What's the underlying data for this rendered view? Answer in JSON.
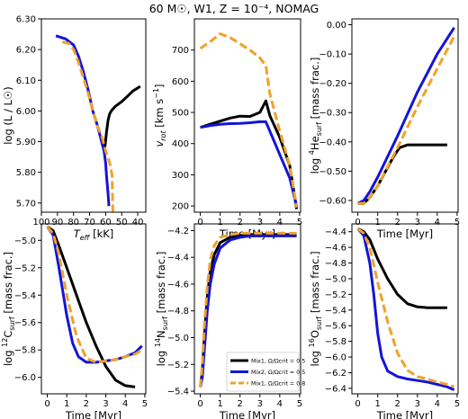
{
  "figure_title": "60 M☉, W1, Z = 10⁻⁴, NOMAG",
  "colors": {
    "black": "#000000",
    "blue": "#1414d8",
    "orange": "#f0a12a"
  },
  "legend": {
    "placement": "lower-right of panel 5",
    "entries": [
      {
        "label": "Mix1, Ω/Ωcrit = 0.5",
        "color": "#000000",
        "style": "solid"
      },
      {
        "label": "Mix2, Ω/Ωcrit = 0.5",
        "color": "#1414d8",
        "style": "solid"
      },
      {
        "label": "Mix1, Ω/Ωcrit = 0.8",
        "color": "#f0a12a",
        "style": "dashed"
      }
    ]
  },
  "chart_data": [
    {
      "type": "line",
      "xlabel": "Teff [kK]",
      "ylabel": "log (L / L☉)",
      "xlim": [
        100,
        35
      ],
      "ylim": [
        5.67,
        6.3
      ],
      "xticks": [
        100,
        90,
        80,
        70,
        60,
        50,
        40
      ],
      "yticks": [
        5.7,
        5.8,
        5.9,
        6.0,
        6.1,
        6.2,
        6.3
      ],
      "series": [
        {
          "color": "black",
          "x": [
            60.5,
            59.5,
            58.5,
            57.5,
            56.5,
            54,
            50,
            46,
            43,
            40,
            38.5
          ],
          "y": [
            5.88,
            5.93,
            5.97,
            5.99,
            6.0,
            6.015,
            6.03,
            6.05,
            6.065,
            6.075,
            6.08
          ]
        },
        {
          "color": "blue",
          "x": [
            91,
            85,
            80,
            77,
            74,
            71,
            68,
            65,
            63,
            61,
            60,
            59.5,
            58.5,
            58
          ],
          "y": [
            6.245,
            6.235,
            6.215,
            6.18,
            6.13,
            6.07,
            6.0,
            5.95,
            5.91,
            5.87,
            5.83,
            5.79,
            5.73,
            5.69
          ]
        },
        {
          "color": "orange",
          "x": [
            87,
            83,
            80,
            77,
            74,
            71,
            68,
            65,
            62,
            60,
            58,
            57,
            56,
            55.8,
            55.5
          ],
          "y": [
            6.225,
            6.22,
            6.2,
            6.16,
            6.11,
            6.06,
            6.0,
            5.95,
            5.91,
            5.87,
            5.84,
            5.82,
            5.79,
            5.74,
            5.67
          ]
        }
      ]
    },
    {
      "type": "line",
      "xlabel": "Time [Myr]",
      "ylabel": "vrot [km s⁻¹]",
      "xlim": [
        -0.3,
        5.05
      ],
      "ylim": [
        180,
        800
      ],
      "xticks": [
        0,
        1,
        2,
        3,
        4,
        5
      ],
      "yticks": [
        200,
        300,
        400,
        500,
        600,
        700
      ],
      "series": [
        {
          "color": "black",
          "x": [
            0,
            0.5,
            1,
            1.5,
            2,
            2.5,
            3,
            3.3,
            3.5,
            4,
            4.5,
            4.85
          ],
          "y": [
            452,
            462,
            472,
            482,
            488,
            487,
            500,
            537,
            490,
            420,
            330,
            190
          ]
        },
        {
          "color": "blue",
          "x": [
            0,
            0.5,
            1,
            1.5,
            2,
            2.5,
            3,
            3.3,
            3.5,
            4,
            4.5,
            4.85
          ],
          "y": [
            452,
            458,
            462,
            464,
            465,
            467,
            470,
            470,
            440,
            365,
            290,
            200
          ]
        },
        {
          "color": "orange",
          "x": [
            0,
            0.5,
            1,
            1.5,
            2,
            2.5,
            3,
            3.3,
            3.5,
            4,
            4.5,
            4.85
          ],
          "y": [
            705,
            727,
            752,
            740,
            720,
            700,
            675,
            650,
            560,
            440,
            330,
            195
          ]
        }
      ]
    },
    {
      "type": "line",
      "xlabel": "Time [Myr]",
      "ylabel": "log ⁴He surf [mass frac.]",
      "xlim": [
        -0.3,
        5.05
      ],
      "ylim": [
        -0.64,
        0.02
      ],
      "xticks": [
        0,
        1,
        2,
        3,
        4,
        5
      ],
      "yticks": [
        -0.6,
        -0.5,
        -0.4,
        -0.3,
        -0.2,
        -0.1,
        0.0
      ],
      "series": [
        {
          "color": "black",
          "x": [
            0,
            0.3,
            0.6,
            1,
            1.4,
            1.8,
            2.1,
            2.5,
            3,
            3.5,
            4,
            4.5
          ],
          "y": [
            -0.61,
            -0.61,
            -0.59,
            -0.55,
            -0.5,
            -0.45,
            -0.42,
            -0.41,
            -0.41,
            -0.41,
            -0.41,
            -0.41
          ]
        },
        {
          "color": "blue",
          "x": [
            0,
            0.3,
            0.6,
            1,
            2,
            3,
            4,
            4.85
          ],
          "y": [
            -0.61,
            -0.6,
            -0.57,
            -0.52,
            -0.38,
            -0.23,
            -0.1,
            -0.01
          ]
        },
        {
          "color": "orange",
          "x": [
            0,
            0.3,
            0.6,
            1,
            2,
            3,
            4,
            4.85
          ],
          "y": [
            -0.61,
            -0.61,
            -0.59,
            -0.55,
            -0.42,
            -0.28,
            -0.15,
            -0.04
          ]
        }
      ]
    },
    {
      "type": "line",
      "xlabel": "Time [Myr]",
      "ylabel": "log ¹²C surf [mass frac.]",
      "xlim": [
        -0.3,
        5.05
      ],
      "ylim": [
        -6.12,
        -4.88
      ],
      "xticks": [
        0,
        1,
        2,
        3,
        4,
        5
      ],
      "yticks": [
        -5.0,
        -5.2,
        -5.4,
        -5.6,
        -5.8,
        -6.0
      ],
      "series": [
        {
          "color": "black",
          "x": [
            0,
            0.3,
            0.6,
            1,
            1.5,
            2,
            2.5,
            3,
            3.5,
            4,
            4.5
          ],
          "y": [
            -4.9,
            -4.93,
            -5.04,
            -5.2,
            -5.4,
            -5.6,
            -5.77,
            -5.92,
            -6.02,
            -6.06,
            -6.07
          ]
        },
        {
          "color": "blue",
          "x": [
            0,
            0.3,
            0.6,
            1,
            1.3,
            1.6,
            2,
            2.5,
            3,
            3.5,
            4,
            4.5,
            4.85
          ],
          "y": [
            -4.9,
            -4.96,
            -5.2,
            -5.55,
            -5.75,
            -5.85,
            -5.89,
            -5.89,
            -5.88,
            -5.87,
            -5.85,
            -5.82,
            -5.77
          ]
        },
        {
          "color": "orange",
          "x": [
            0,
            0.3,
            0.6,
            1,
            1.5,
            2,
            2.5,
            3,
            3.5,
            4,
            4.5,
            4.85
          ],
          "y": [
            -4.9,
            -4.95,
            -5.1,
            -5.4,
            -5.7,
            -5.86,
            -5.89,
            -5.88,
            -5.87,
            -5.85,
            -5.83,
            -5.8
          ]
        }
      ]
    },
    {
      "type": "line",
      "xlabel": "Time [Myr]",
      "ylabel": "log ¹⁴N surf [mass frac.]",
      "xlim": [
        -0.3,
        5.05
      ],
      "ylim": [
        -5.42,
        -4.15
      ],
      "xticks": [
        0,
        1,
        2,
        3,
        4,
        5
      ],
      "yticks": [
        -4.2,
        -4.4,
        -4.6,
        -4.8,
        -5.0,
        -5.2,
        -5.4
      ],
      "series": [
        {
          "color": "black",
          "x": [
            0,
            0.1,
            0.2,
            0.35,
            0.5,
            0.7,
            1,
            1.5,
            2,
            2.5,
            3,
            4,
            4.85
          ],
          "y": [
            -5.37,
            -5.25,
            -5.0,
            -4.7,
            -4.5,
            -4.38,
            -4.29,
            -4.25,
            -4.24,
            -4.23,
            -4.23,
            -4.23,
            -4.23
          ]
        },
        {
          "color": "blue",
          "x": [
            0,
            0.1,
            0.2,
            0.35,
            0.5,
            0.7,
            1,
            1.5,
            2,
            2.5,
            3,
            4,
            4.85
          ],
          "y": [
            -5.37,
            -5.3,
            -5.1,
            -4.8,
            -4.6,
            -4.45,
            -4.33,
            -4.27,
            -4.25,
            -4.24,
            -4.24,
            -4.24,
            -4.24
          ]
        },
        {
          "color": "orange",
          "x": [
            0,
            0.1,
            0.2,
            0.35,
            0.5,
            0.7,
            1,
            1.5,
            2,
            2.5,
            3,
            4,
            4.85
          ],
          "y": [
            -5.37,
            -5.2,
            -4.92,
            -4.62,
            -4.42,
            -4.31,
            -4.25,
            -4.23,
            -4.22,
            -4.22,
            -4.22,
            -4.22,
            -4.22
          ]
        }
      ]
    },
    {
      "type": "line",
      "xlabel": "Time [Myr]",
      "ylabel": "log ¹⁶O surf [mass frac.]",
      "xlim": [
        -0.3,
        5.05
      ],
      "ylim": [
        -6.47,
        -4.3
      ],
      "xticks": [
        0,
        1,
        2,
        3,
        4,
        5
      ],
      "yticks": [
        -4.4,
        -4.6,
        -4.8,
        -5.0,
        -5.2,
        -5.4,
        -5.6,
        -5.8,
        -6.0,
        -6.2,
        -6.4
      ],
      "series": [
        {
          "color": "black",
          "x": [
            0,
            0.3,
            0.6,
            1,
            1.5,
            2,
            2.5,
            3,
            3.5,
            4,
            4.5
          ],
          "y": [
            -4.36,
            -4.4,
            -4.5,
            -4.75,
            -5.0,
            -5.2,
            -5.32,
            -5.36,
            -5.37,
            -5.37,
            -5.37
          ]
        },
        {
          "color": "blue",
          "x": [
            0,
            0.3,
            0.6,
            0.8,
            1,
            1.2,
            1.5,
            2,
            2.5,
            3,
            3.5,
            4,
            4.5,
            4.85
          ],
          "y": [
            -4.36,
            -4.45,
            -4.8,
            -5.2,
            -5.7,
            -6.0,
            -6.18,
            -6.25,
            -6.28,
            -6.3,
            -6.32,
            -6.35,
            -6.38,
            -6.42
          ]
        },
        {
          "color": "orange",
          "x": [
            0,
            0.3,
            0.6,
            1,
            1.5,
            2,
            2.5,
            3,
            3.5,
            4,
            4.5,
            4.85
          ],
          "y": [
            -4.36,
            -4.42,
            -4.6,
            -5.05,
            -5.55,
            -5.95,
            -6.17,
            -6.25,
            -6.28,
            -6.32,
            -6.35,
            -6.38
          ]
        }
      ]
    }
  ]
}
